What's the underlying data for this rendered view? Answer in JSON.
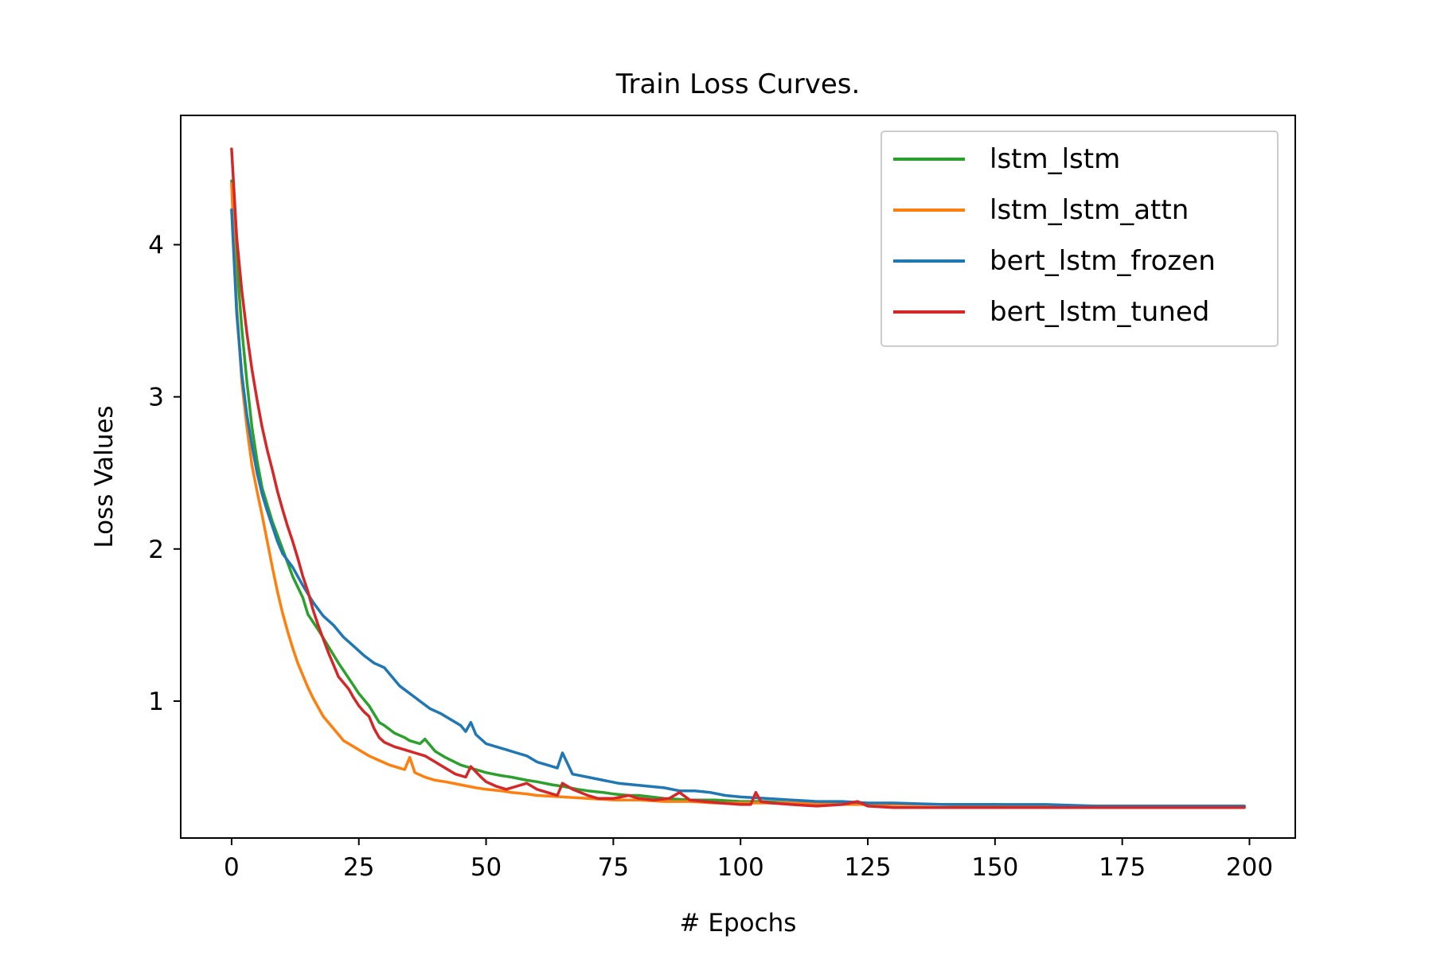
{
  "chart_data": {
    "type": "line",
    "title": "Train Loss Curves.",
    "xlabel": "# Epochs",
    "ylabel": "Loss Values",
    "xlim": [
      -10,
      209
    ],
    "ylim": [
      0.1,
      4.85
    ],
    "x_ticks": [
      0,
      25,
      50,
      75,
      100,
      125,
      150,
      175,
      200
    ],
    "y_ticks": [
      1,
      2,
      3,
      4
    ],
    "grid": false,
    "legend_position": "top-right",
    "series": [
      {
        "name": "lstm_lstm",
        "color": "#2ca02c",
        "points": [
          [
            0,
            4.42
          ],
          [
            1,
            3.9
          ],
          [
            2,
            3.45
          ],
          [
            3,
            3.1
          ],
          [
            4,
            2.8
          ],
          [
            5,
            2.58
          ],
          [
            6,
            2.4
          ],
          [
            8,
            2.18
          ],
          [
            10,
            2.0
          ],
          [
            12,
            1.82
          ],
          [
            14,
            1.68
          ],
          [
            15,
            1.57
          ],
          [
            17,
            1.47
          ],
          [
            19,
            1.36
          ],
          [
            21,
            1.25
          ],
          [
            22,
            1.2
          ],
          [
            24,
            1.1
          ],
          [
            25,
            1.05
          ],
          [
            27,
            0.97
          ],
          [
            29,
            0.86
          ],
          [
            30,
            0.84
          ],
          [
            32,
            0.79
          ],
          [
            34,
            0.76
          ],
          [
            35,
            0.74
          ],
          [
            37,
            0.72
          ],
          [
            38,
            0.75
          ],
          [
            40,
            0.67
          ],
          [
            42,
            0.63
          ],
          [
            45,
            0.58
          ],
          [
            48,
            0.55
          ],
          [
            50,
            0.53
          ],
          [
            53,
            0.51
          ],
          [
            55,
            0.5
          ],
          [
            58,
            0.48
          ],
          [
            60,
            0.47
          ],
          [
            63,
            0.45
          ],
          [
            65,
            0.44
          ],
          [
            68,
            0.42
          ],
          [
            70,
            0.41
          ],
          [
            73,
            0.4
          ],
          [
            75,
            0.39
          ],
          [
            78,
            0.38
          ],
          [
            80,
            0.38
          ],
          [
            85,
            0.36
          ],
          [
            90,
            0.35
          ],
          [
            95,
            0.35
          ],
          [
            100,
            0.34
          ],
          [
            105,
            0.34
          ],
          [
            110,
            0.33
          ],
          [
            115,
            0.33
          ],
          [
            120,
            0.33
          ],
          [
            125,
            0.32
          ],
          [
            130,
            0.32
          ],
          [
            140,
            0.32
          ],
          [
            150,
            0.32
          ],
          [
            160,
            0.31
          ],
          [
            170,
            0.31
          ],
          [
            180,
            0.31
          ],
          [
            190,
            0.31
          ],
          [
            199,
            0.31
          ]
        ]
      },
      {
        "name": "lstm_lstm_attn",
        "color": "#ff7f0e",
        "points": [
          [
            0,
            4.4
          ],
          [
            1,
            3.6
          ],
          [
            2,
            3.1
          ],
          [
            3,
            2.8
          ],
          [
            4,
            2.55
          ],
          [
            5,
            2.38
          ],
          [
            6,
            2.22
          ],
          [
            7,
            2.05
          ],
          [
            8,
            1.88
          ],
          [
            9,
            1.72
          ],
          [
            10,
            1.58
          ],
          [
            11,
            1.46
          ],
          [
            12,
            1.35
          ],
          [
            13,
            1.25
          ],
          [
            14,
            1.17
          ],
          [
            15,
            1.09
          ],
          [
            16,
            1.02
          ],
          [
            17,
            0.96
          ],
          [
            18,
            0.9
          ],
          [
            19,
            0.86
          ],
          [
            20,
            0.82
          ],
          [
            21,
            0.78
          ],
          [
            22,
            0.74
          ],
          [
            23,
            0.72
          ],
          [
            25,
            0.68
          ],
          [
            27,
            0.64
          ],
          [
            29,
            0.61
          ],
          [
            31,
            0.58
          ],
          [
            33,
            0.56
          ],
          [
            34,
            0.55
          ],
          [
            35,
            0.63
          ],
          [
            36,
            0.53
          ],
          [
            38,
            0.5
          ],
          [
            40,
            0.48
          ],
          [
            42,
            0.47
          ],
          [
            45,
            0.45
          ],
          [
            48,
            0.43
          ],
          [
            50,
            0.42
          ],
          [
            53,
            0.41
          ],
          [
            55,
            0.4
          ],
          [
            58,
            0.39
          ],
          [
            60,
            0.38
          ],
          [
            65,
            0.37
          ],
          [
            70,
            0.36
          ],
          [
            75,
            0.35
          ],
          [
            80,
            0.35
          ],
          [
            85,
            0.34
          ],
          [
            90,
            0.34
          ],
          [
            95,
            0.33
          ],
          [
            100,
            0.33
          ],
          [
            110,
            0.33
          ],
          [
            120,
            0.32
          ],
          [
            130,
            0.32
          ],
          [
            140,
            0.32
          ],
          [
            150,
            0.31
          ],
          [
            160,
            0.31
          ],
          [
            170,
            0.31
          ],
          [
            180,
            0.31
          ],
          [
            190,
            0.31
          ],
          [
            199,
            0.31
          ]
        ]
      },
      {
        "name": "bert_lstm_frozen",
        "color": "#1f77b4",
        "points": [
          [
            0,
            4.23
          ],
          [
            1,
            3.55
          ],
          [
            2,
            3.15
          ],
          [
            3,
            2.88
          ],
          [
            4,
            2.68
          ],
          [
            5,
            2.5
          ],
          [
            6,
            2.36
          ],
          [
            7,
            2.25
          ],
          [
            8,
            2.15
          ],
          [
            9,
            2.05
          ],
          [
            10,
            1.97
          ],
          [
            12,
            1.88
          ],
          [
            14,
            1.76
          ],
          [
            16,
            1.65
          ],
          [
            18,
            1.56
          ],
          [
            20,
            1.5
          ],
          [
            22,
            1.42
          ],
          [
            24,
            1.36
          ],
          [
            26,
            1.3
          ],
          [
            28,
            1.25
          ],
          [
            30,
            1.22
          ],
          [
            31,
            1.18
          ],
          [
            33,
            1.1
          ],
          [
            35,
            1.05
          ],
          [
            37,
            1.0
          ],
          [
            39,
            0.95
          ],
          [
            41,
            0.92
          ],
          [
            43,
            0.88
          ],
          [
            45,
            0.84
          ],
          [
            46,
            0.8
          ],
          [
            47,
            0.86
          ],
          [
            48,
            0.78
          ],
          [
            50,
            0.72
          ],
          [
            52,
            0.7
          ],
          [
            54,
            0.68
          ],
          [
            56,
            0.66
          ],
          [
            58,
            0.64
          ],
          [
            60,
            0.6
          ],
          [
            62,
            0.58
          ],
          [
            64,
            0.56
          ],
          [
            65,
            0.66
          ],
          [
            67,
            0.52
          ],
          [
            70,
            0.5
          ],
          [
            73,
            0.48
          ],
          [
            76,
            0.46
          ],
          [
            79,
            0.45
          ],
          [
            82,
            0.44
          ],
          [
            85,
            0.43
          ],
          [
            88,
            0.41
          ],
          [
            91,
            0.41
          ],
          [
            94,
            0.4
          ],
          [
            97,
            0.38
          ],
          [
            100,
            0.37
          ],
          [
            105,
            0.36
          ],
          [
            110,
            0.35
          ],
          [
            115,
            0.34
          ],
          [
            120,
            0.34
          ],
          [
            125,
            0.33
          ],
          [
            130,
            0.33
          ],
          [
            140,
            0.32
          ],
          [
            150,
            0.32
          ],
          [
            160,
            0.32
          ],
          [
            170,
            0.31
          ],
          [
            180,
            0.31
          ],
          [
            190,
            0.31
          ],
          [
            199,
            0.31
          ]
        ]
      },
      {
        "name": "bert_lstm_tuned",
        "color": "#d62728",
        "points": [
          [
            0,
            4.63
          ],
          [
            1,
            4.05
          ],
          [
            2,
            3.7
          ],
          [
            3,
            3.42
          ],
          [
            4,
            3.18
          ],
          [
            5,
            2.98
          ],
          [
            6,
            2.8
          ],
          [
            7,
            2.65
          ],
          [
            8,
            2.52
          ],
          [
            9,
            2.38
          ],
          [
            10,
            2.26
          ],
          [
            11,
            2.15
          ],
          [
            12,
            2.05
          ],
          [
            13,
            1.94
          ],
          [
            14,
            1.82
          ],
          [
            15,
            1.72
          ],
          [
            16,
            1.6
          ],
          [
            17,
            1.5
          ],
          [
            18,
            1.41
          ],
          [
            19,
            1.32
          ],
          [
            20,
            1.24
          ],
          [
            21,
            1.16
          ],
          [
            22,
            1.12
          ],
          [
            23,
            1.08
          ],
          [
            24,
            1.02
          ],
          [
            25,
            0.97
          ],
          [
            26,
            0.93
          ],
          [
            27,
            0.9
          ],
          [
            28,
            0.82
          ],
          [
            29,
            0.76
          ],
          [
            30,
            0.73
          ],
          [
            32,
            0.7
          ],
          [
            34,
            0.68
          ],
          [
            36,
            0.66
          ],
          [
            38,
            0.64
          ],
          [
            40,
            0.6
          ],
          [
            42,
            0.56
          ],
          [
            44,
            0.52
          ],
          [
            46,
            0.5
          ],
          [
            47,
            0.57
          ],
          [
            49,
            0.5
          ],
          [
            50,
            0.47
          ],
          [
            52,
            0.44
          ],
          [
            54,
            0.42
          ],
          [
            56,
            0.44
          ],
          [
            58,
            0.46
          ],
          [
            60,
            0.42
          ],
          [
            62,
            0.4
          ],
          [
            64,
            0.38
          ],
          [
            65,
            0.46
          ],
          [
            67,
            0.42
          ],
          [
            70,
            0.38
          ],
          [
            72,
            0.36
          ],
          [
            75,
            0.36
          ],
          [
            78,
            0.38
          ],
          [
            80,
            0.36
          ],
          [
            83,
            0.35
          ],
          [
            86,
            0.36
          ],
          [
            88,
            0.4
          ],
          [
            90,
            0.35
          ],
          [
            93,
            0.34
          ],
          [
            96,
            0.33
          ],
          [
            100,
            0.32
          ],
          [
            102,
            0.32
          ],
          [
            103,
            0.4
          ],
          [
            104,
            0.34
          ],
          [
            106,
            0.33
          ],
          [
            110,
            0.32
          ],
          [
            115,
            0.31
          ],
          [
            120,
            0.32
          ],
          [
            123,
            0.34
          ],
          [
            125,
            0.31
          ],
          [
            130,
            0.3
          ],
          [
            140,
            0.3
          ],
          [
            150,
            0.3
          ],
          [
            160,
            0.3
          ],
          [
            170,
            0.3
          ],
          [
            180,
            0.3
          ],
          [
            190,
            0.3
          ],
          [
            199,
            0.3
          ]
        ]
      }
    ]
  }
}
